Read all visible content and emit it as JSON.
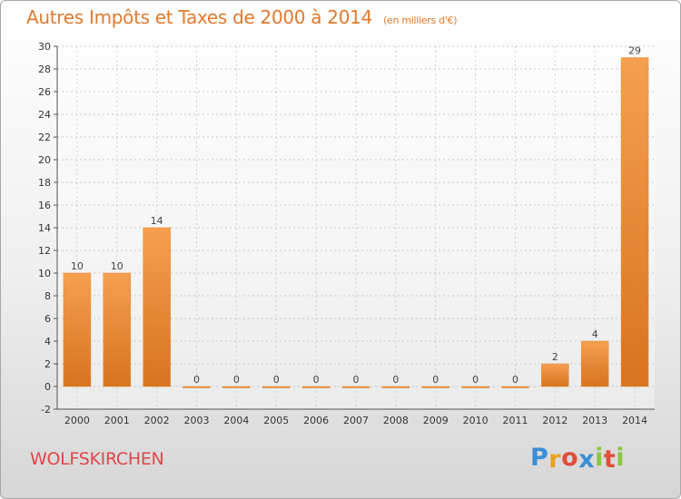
{
  "chart_data": {
    "type": "bar",
    "title": "Autres Impôts et Taxes de 2000 à 2014",
    "unit_label": "(en milliers d'€)",
    "categories": [
      "2000",
      "2001",
      "2002",
      "2003",
      "2004",
      "2005",
      "2006",
      "2007",
      "2008",
      "2009",
      "2010",
      "2011",
      "2012",
      "2013",
      "2014"
    ],
    "values": [
      10,
      10,
      14,
      0,
      0,
      0,
      0,
      0,
      0,
      0,
      0,
      0,
      2,
      4,
      29
    ],
    "ylim": [
      -2,
      30
    ],
    "yticks": [
      -2,
      0,
      2,
      4,
      6,
      8,
      10,
      12,
      14,
      16,
      18,
      20,
      22,
      24,
      26,
      28,
      30
    ],
    "grid": true,
    "bar_color": "#f4a04e",
    "bar_color_dark": "#d8731f"
  },
  "commune": "WOLFSKIRCHEN",
  "logo": {
    "letters": [
      "P",
      "r",
      "o",
      "x",
      "i",
      "t",
      "i"
    ],
    "colors": [
      "#3a8fd6",
      "#e8a21c",
      "#e04f3c",
      "#3a8fd6",
      "#8cc63e",
      "#e04f3c",
      "#8cc63e"
    ]
  }
}
